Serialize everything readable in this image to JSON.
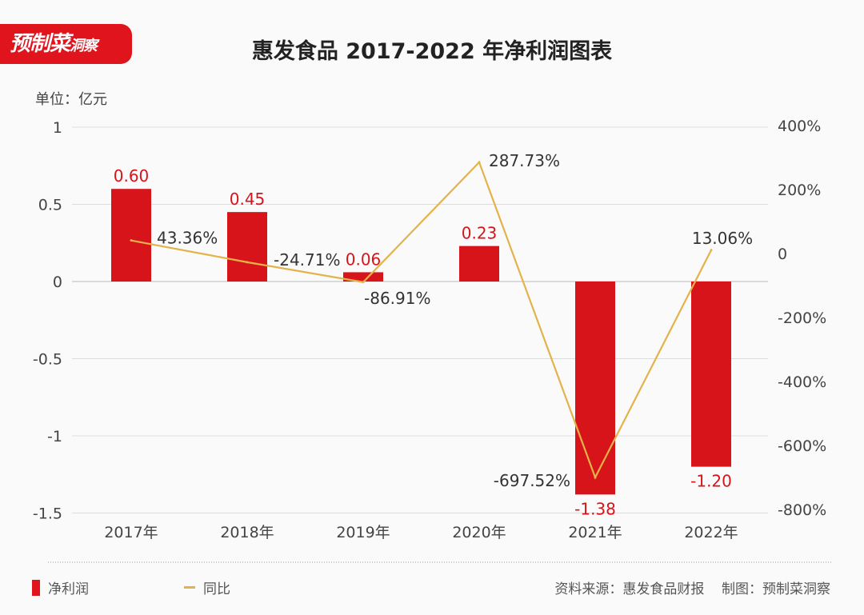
{
  "logo": {
    "main": "预制菜",
    "sub": "洞察"
  },
  "unit_label": "单位：亿元",
  "source": "资料来源：惠发食品财报",
  "credit": "制图：预制菜洞察",
  "chart_data": {
    "type": "bar+line",
    "title": "惠发食品 2017-2022 年净利润图表",
    "categories": [
      "2017年",
      "2018年",
      "2019年",
      "2020年",
      "2021年",
      "2022年"
    ],
    "series": [
      {
        "name": "净利润",
        "type": "bar",
        "axis": "left",
        "color": "#d7141a",
        "values": [
          0.6,
          0.45,
          0.06,
          0.23,
          -1.38,
          -1.2
        ],
        "labels": [
          "0.60",
          "0.45",
          "0.06",
          "0.23",
          "-1.38",
          "-1.20"
        ]
      },
      {
        "name": "同比",
        "type": "line",
        "axis": "right",
        "color": "#e3b34a",
        "values": [
          43.36,
          -24.71,
          -86.91,
          287.73,
          -697.52,
          13.06
        ],
        "labels": [
          "43.36%",
          "-24.71%",
          "-86.91%",
          "287.73%",
          "-697.52%",
          "13.06%"
        ]
      }
    ],
    "left_axis": {
      "ylim": [
        -1.5,
        1
      ],
      "ticks": [
        1,
        0.5,
        0,
        -0.5,
        -1,
        -1.5
      ],
      "tick_labels": [
        "1",
        "0.5",
        "0",
        "-0.5",
        "-1",
        "-1.5"
      ]
    },
    "right_axis": {
      "ylim": [
        -800,
        400
      ],
      "ticks": [
        400,
        200,
        0,
        -200,
        -400,
        -600,
        -800
      ],
      "tick_labels": [
        "400%",
        "200%",
        "0",
        "-200%",
        "-400%",
        "-600%",
        "-800%"
      ]
    },
    "grid": true,
    "legend": "bottom-left"
  }
}
